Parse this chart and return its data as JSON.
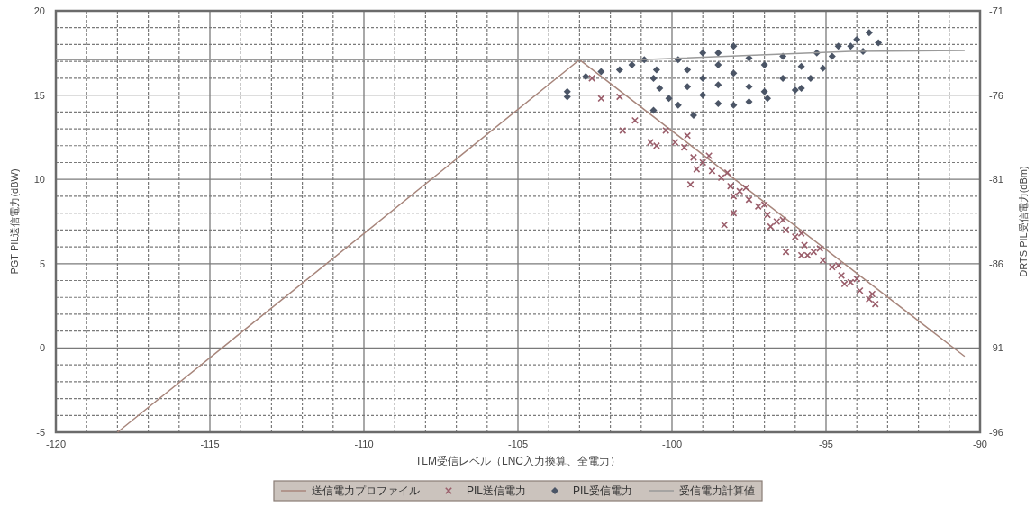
{
  "chart_data": {
    "type": "scatter",
    "xlabel": "TLM受信レベル（LNC入力換算、全電力）",
    "ylabel": "PGT PIL送信電力(dBW)",
    "y2label": "DRTS PIL受信電力(dBm)",
    "xlim": [
      -120,
      -90
    ],
    "xticks": [
      -120,
      -115,
      -110,
      -105,
      -100,
      -95,
      -90
    ],
    "ylim": [
      -5,
      20
    ],
    "yticks": [
      -5,
      0,
      5,
      10,
      15,
      20
    ],
    "y2lim": [
      -96,
      -71
    ],
    "y2ticks": [
      -96,
      -91,
      -86,
      -81,
      -76,
      -71
    ],
    "grid": true,
    "legend": "bottom",
    "series": [
      {
        "name": "送信電力プロファイル",
        "type": "line",
        "color": "#a8867c",
        "marker": "none",
        "x": [
          -118,
          -103,
          -90.5
        ],
        "values": [
          -5,
          17.1,
          -0.5
        ]
      },
      {
        "name": "PIL送信電力",
        "color": "#9a5d6a",
        "marker": "cross",
        "x": [
          -102.6,
          -102.3,
          -101.7,
          -101.6,
          -101.2,
          -100.7,
          -100.5,
          -99.4,
          -98.3,
          -98.0,
          -96.3,
          -95.8,
          -100.2,
          -99.9,
          -99.6,
          -99.3,
          -99.0,
          -98.7,
          -98.4,
          -98.1,
          -97.8,
          -97.5,
          -97.2,
          -96.9,
          -96.6,
          -96.3,
          -96.0,
          -95.7,
          -95.4,
          -95.1,
          -94.8,
          -94.5,
          -94.2,
          -93.9,
          -93.6,
          -93.4,
          -99.5,
          -98.8,
          -98.2,
          -97.6,
          -97.0,
          -96.4,
          -95.8,
          -95.2,
          -94.6,
          -94.0,
          -93.5,
          -99.2,
          -98.0,
          -96.8,
          -95.6,
          -94.4
        ],
        "values": [
          16.0,
          14.8,
          14.9,
          12.9,
          13.5,
          12.2,
          12.0,
          9.7,
          7.3,
          8.0,
          5.7,
          5.5,
          12.9,
          12.2,
          11.9,
          11.3,
          11.0,
          10.5,
          10.1,
          9.6,
          9.3,
          8.8,
          8.4,
          7.9,
          7.5,
          7.0,
          6.6,
          6.1,
          5.7,
          5.2,
          4.8,
          4.3,
          3.9,
          3.4,
          2.9,
          2.6,
          12.6,
          11.4,
          10.4,
          9.5,
          8.5,
          7.6,
          6.8,
          5.9,
          4.9,
          4.1,
          3.2,
          10.6,
          9.0,
          7.2,
          5.5,
          3.8
        ]
      },
      {
        "name": "PIL受信電力",
        "color": "#4b5566",
        "marker": "diamond",
        "axis": "y2",
        "x": [
          -103.4,
          -103.4,
          -102.8,
          -102.3,
          -101.7,
          -101.3,
          -100.9,
          -100.6,
          -100.5,
          -100.4,
          -100.1,
          -100.6,
          -99.8,
          -99.8,
          -99.3,
          -99.5,
          -99.5,
          -99.0,
          -99.0,
          -99.0,
          -98.5,
          -98.5,
          -98.5,
          -98.5,
          -98.0,
          -98.0,
          -98.0,
          -97.5,
          -97.5,
          -97.5,
          -97.0,
          -97.0,
          -96.9,
          -96.4,
          -96.4,
          -96.0,
          -95.8,
          -95.8,
          -95.3,
          -95.1,
          -95.5,
          -94.6,
          -94.2,
          -94.0,
          -93.6,
          -93.3,
          -93.8,
          -94.8
        ],
        "values": [
          -75.8,
          -76.1,
          -74.9,
          -74.6,
          -74.5,
          -74.2,
          -73.9,
          -75.0,
          -74.5,
          -75.6,
          -76.2,
          -76.9,
          -73.9,
          -76.6,
          -77.2,
          -74.5,
          -75.5,
          -73.5,
          -75.0,
          -76.0,
          -73.5,
          -74.2,
          -76.5,
          -75.4,
          -73.1,
          -74.7,
          -76.6,
          -73.8,
          -75.5,
          -76.4,
          -74.2,
          -75.8,
          -76.2,
          -73.7,
          -75.0,
          -75.7,
          -75.6,
          -74.3,
          -73.5,
          -74.4,
          -75.0,
          -73.1,
          -73.1,
          -72.7,
          -72.3,
          -72.9,
          -73.4,
          -73.7
        ]
      },
      {
        "name": "受信電力計算値",
        "type": "line",
        "color": "#9a9a9a",
        "marker": "none",
        "axis": "y2",
        "x": [
          -120,
          -101,
          -94.2,
          -90.5
        ],
        "values": [
          -73.9,
          -73.9,
          -73.4,
          -73.35
        ]
      }
    ]
  }
}
